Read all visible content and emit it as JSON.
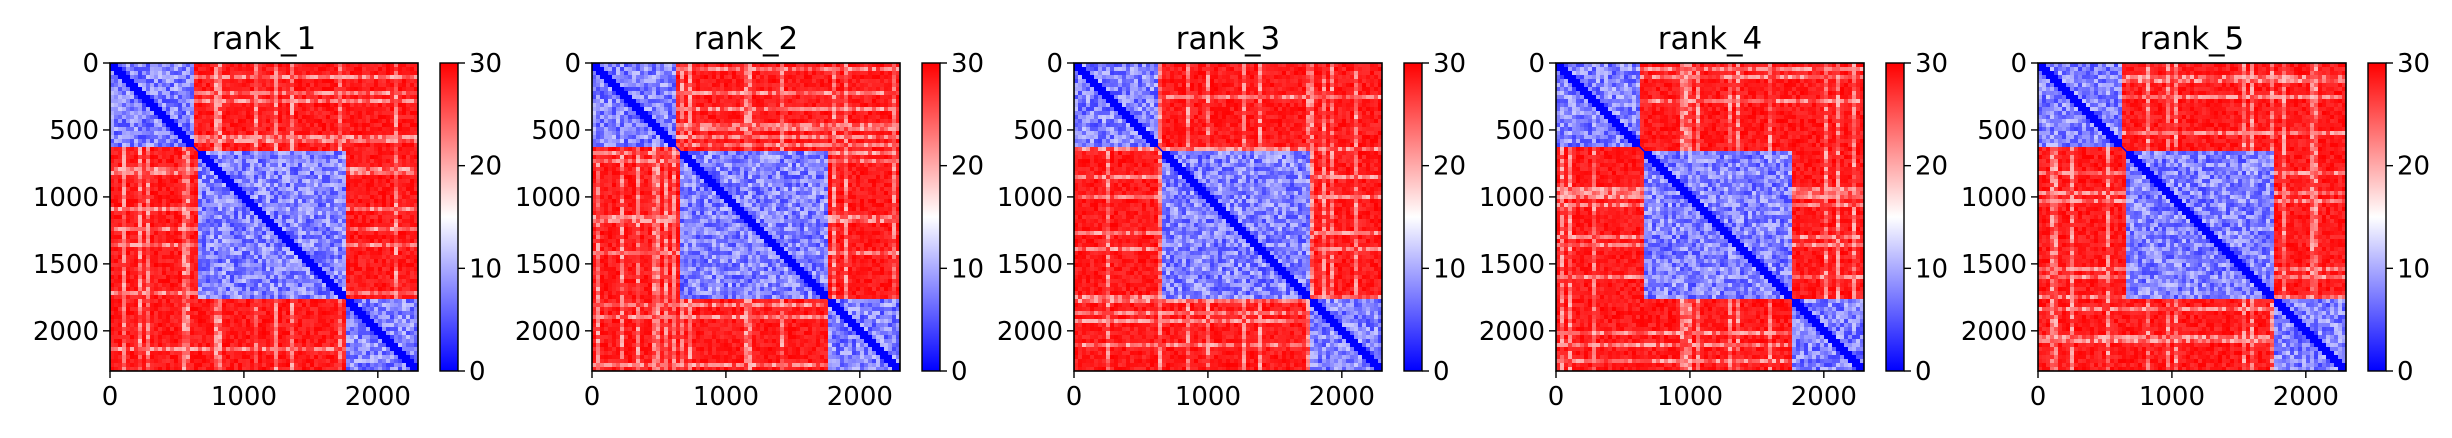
{
  "chart_data": [
    {
      "type": "heatmap",
      "title": "rank_1",
      "x_ticks": [
        0,
        1000,
        2000
      ],
      "y_ticks": [
        0,
        500,
        1000,
        1500,
        2000
      ],
      "xlim": [
        0,
        2300
      ],
      "ylim": [
        2300,
        0
      ],
      "colorbar": {
        "ticks": [
          0,
          10,
          20,
          30
        ],
        "range": [
          0,
          30
        ],
        "colormap": "bwr"
      },
      "blocks": [
        {
          "start": 0,
          "end": 640
        },
        {
          "start": 650,
          "end": 1760
        },
        {
          "start": 1760,
          "end": 2300
        }
      ]
    },
    {
      "type": "heatmap",
      "title": "rank_2",
      "x_ticks": [
        0,
        1000,
        2000
      ],
      "y_ticks": [
        0,
        500,
        1000,
        1500,
        2000
      ],
      "xlim": [
        0,
        2300
      ],
      "ylim": [
        2300,
        0
      ],
      "colorbar": {
        "ticks": [
          0,
          10,
          20,
          30
        ],
        "range": [
          0,
          30
        ],
        "colormap": "bwr"
      },
      "blocks": [
        {
          "start": 0,
          "end": 640
        },
        {
          "start": 650,
          "end": 1760
        },
        {
          "start": 1760,
          "end": 2300
        }
      ]
    },
    {
      "type": "heatmap",
      "title": "rank_3",
      "x_ticks": [
        0,
        1000,
        2000
      ],
      "y_ticks": [
        0,
        500,
        1000,
        1500,
        2000
      ],
      "xlim": [
        0,
        2300
      ],
      "ylim": [
        2300,
        0
      ],
      "colorbar": {
        "ticks": [
          0,
          10,
          20,
          30
        ],
        "range": [
          0,
          30
        ],
        "colormap": "bwr"
      },
      "blocks": [
        {
          "start": 0,
          "end": 640
        },
        {
          "start": 650,
          "end": 1760
        },
        {
          "start": 1760,
          "end": 2300
        }
      ]
    },
    {
      "type": "heatmap",
      "title": "rank_4",
      "x_ticks": [
        0,
        1000,
        2000
      ],
      "y_ticks": [
        0,
        500,
        1000,
        1500,
        2000
      ],
      "xlim": [
        0,
        2300
      ],
      "ylim": [
        2300,
        0
      ],
      "colorbar": {
        "ticks": [
          0,
          10,
          20,
          30
        ],
        "range": [
          0,
          30
        ],
        "colormap": "bwr"
      },
      "blocks": [
        {
          "start": 0,
          "end": 640
        },
        {
          "start": 650,
          "end": 1760
        },
        {
          "start": 1760,
          "end": 2300
        }
      ]
    },
    {
      "type": "heatmap",
      "title": "rank_5",
      "x_ticks": [
        0,
        1000,
        2000
      ],
      "y_ticks": [
        0,
        500,
        1000,
        1500,
        2000
      ],
      "xlim": [
        0,
        2300
      ],
      "ylim": [
        2300,
        0
      ],
      "colorbar": {
        "ticks": [
          0,
          10,
          20,
          30
        ],
        "range": [
          0,
          30
        ],
        "colormap": "bwr"
      },
      "blocks": [
        {
          "start": 0,
          "end": 640
        },
        {
          "start": 650,
          "end": 1760
        },
        {
          "start": 1760,
          "end": 2300
        }
      ]
    }
  ]
}
